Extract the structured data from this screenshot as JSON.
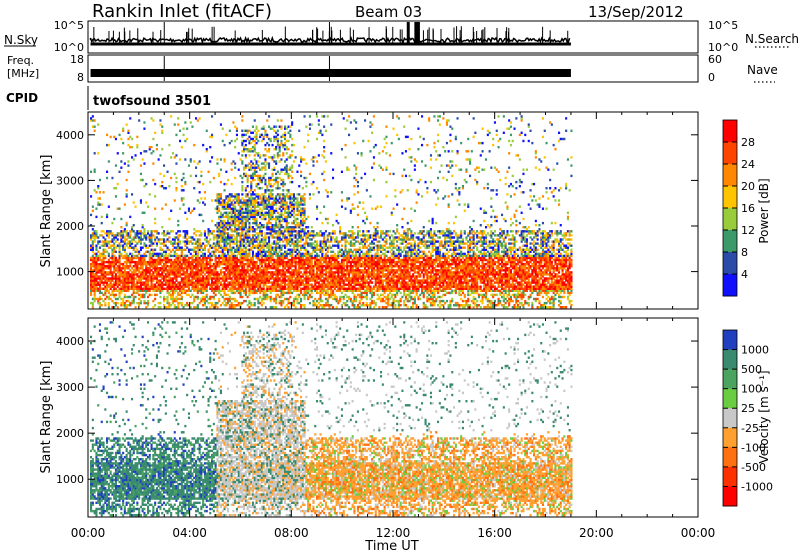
{
  "header": {
    "station": "Rankin Inlet (fitACF)",
    "beam": "Beam 03",
    "date": "13/Sep/2012"
  },
  "top_panels": {
    "nsky_label": "N.Sky",
    "nsky_ticks": [
      "10^5",
      "10^0"
    ],
    "nsearch_label": "N.Search",
    "nsearch_ticks": [
      "10^5",
      "10^0"
    ],
    "freq_label_1": "Freq.",
    "freq_label_2": "[MHz]",
    "freq_ticks": [
      "18",
      "8"
    ],
    "nave_label": "Nave",
    "nave_ticks": [
      "60",
      "0"
    ],
    "cpid_label": "CPID",
    "cpid_value": "twofsound 3501"
  },
  "chart_data": [
    {
      "type": "heatmap",
      "name": "power",
      "ylabel": "Slant Range [km]",
      "xlabel": "Time UT",
      "x_ticks": [
        "00:00",
        "04:00",
        "08:00",
        "12:00",
        "16:00",
        "20:00",
        "00:00"
      ],
      "y_ticks": [
        1000,
        2000,
        3000,
        4000
      ],
      "ylim": [
        180,
        4500
      ],
      "xlim_hours": [
        0,
        24
      ],
      "data_end_hour": 19,
      "colorbar": {
        "label": "Power [dB]",
        "ticks": [
          "28",
          "24",
          "20",
          "16",
          "12",
          "8",
          "4"
        ],
        "colors": [
          "#ff0000",
          "#ff4400",
          "#ff8800",
          "#ffc400",
          "#98cc3a",
          "#3c9a6a",
          "#2a4ca8",
          "#1010ff"
        ]
      },
      "features": [
        {
          "t0": 0.1,
          "t1": 19.0,
          "r0": 600,
          "r1": 1300,
          "level": "strong"
        },
        {
          "t0": 5.0,
          "t1": 8.5,
          "r0": 1400,
          "r1": 2600,
          "level": "moderate"
        },
        {
          "t0": 6.0,
          "t1": 8.0,
          "r0": 2600,
          "r1": 4200,
          "level": "weak"
        }
      ]
    },
    {
      "type": "heatmap",
      "name": "velocity",
      "ylabel": "Slant Range [km]",
      "xlabel": "Time UT",
      "x_ticks": [
        "00:00",
        "04:00",
        "08:00",
        "12:00",
        "16:00",
        "20:00",
        "00:00"
      ],
      "y_ticks": [
        1000,
        2000,
        3000,
        4000
      ],
      "ylim": [
        180,
        4500
      ],
      "xlim_hours": [
        0,
        24
      ],
      "data_end_hour": 19,
      "colorbar": {
        "label": "Velocity [m s⁻¹]",
        "ticks": [
          "1000",
          "500",
          "100",
          "25",
          "-25",
          "-100",
          "-500",
          "-1000"
        ],
        "colors": [
          "#2040c0",
          "#3a8a70",
          "#4aa460",
          "#6acc40",
          "#c8c8c8",
          "#ffa030",
          "#ff7010",
          "#ff3000",
          "#ff0000"
        ]
      },
      "features": [
        {
          "t0": 0.1,
          "t1": 5.0,
          "r0": 600,
          "r1": 1700,
          "level": "toward"
        },
        {
          "t0": 5.0,
          "t1": 8.5,
          "r0": 1500,
          "r1": 3000,
          "level": "mixed"
        },
        {
          "t0": 9.0,
          "t1": 19.0,
          "r0": 600,
          "r1": 1600,
          "level": "away"
        }
      ]
    }
  ],
  "bottom": {
    "xlabel": "Time UT"
  }
}
